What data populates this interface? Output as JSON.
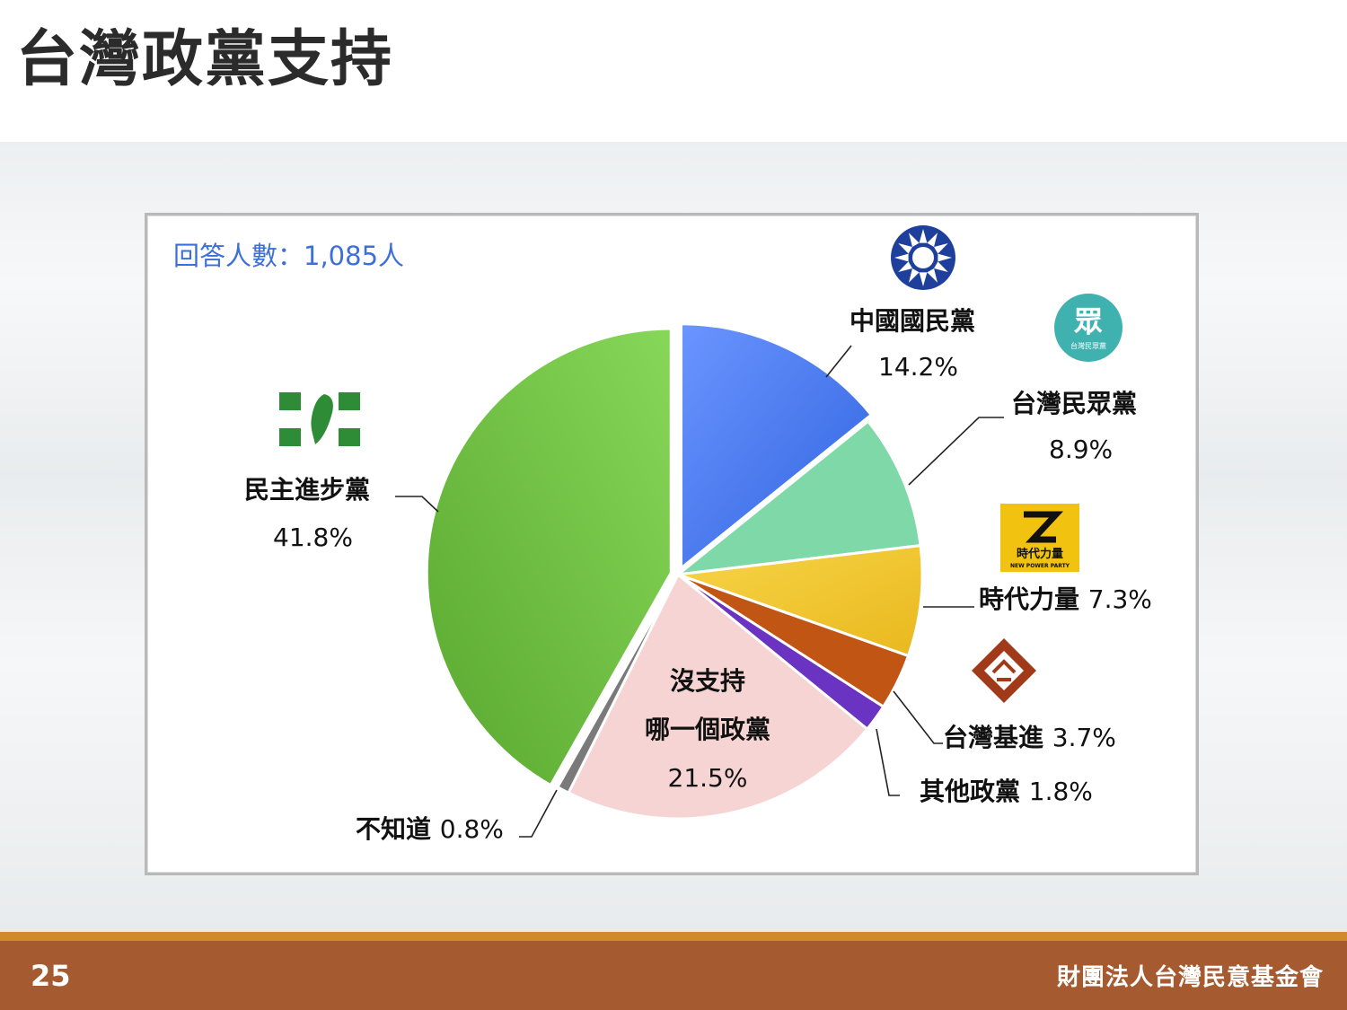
{
  "slide": {
    "title": "台灣政黨支持",
    "page_number": "25",
    "organization": "財團法人台灣民意基金會"
  },
  "respondents": "回答人數：1,085人",
  "colors": {
    "kmt": "#4f7ff0",
    "tpp": "#7fd8a8",
    "npp": "#f2c932",
    "tsp": "#c05514",
    "other": "#6a33c2",
    "none": "#f6d4d4",
    "unknown": "#7a7a7a",
    "dpp": "#6cc040",
    "footer": "#a65a30",
    "footer_line": "#d08a2a"
  },
  "icons": {
    "kmt": "kmt-emblem-icon",
    "tpp": "tpp-logo-icon",
    "npp": "npp-logo-icon",
    "tsp": "tsp-logo-icon",
    "dpp": "dpp-logo-icon"
  },
  "logo_text": {
    "tpp_glyph": "眾",
    "tpp_small": "台灣民眾黨",
    "npp_name": "時代力量",
    "npp_english": "NEW POWER PARTY"
  },
  "chart_data": {
    "type": "pie",
    "start_angle_deg": 0,
    "direction": "clockwise",
    "slices": [
      {
        "key": "kmt",
        "name": "中國國民黨",
        "value": 14.2,
        "label": "14.2%"
      },
      {
        "key": "tpp",
        "name": "台灣民眾黨",
        "value": 8.9,
        "label": "8.9%"
      },
      {
        "key": "npp",
        "name": "時代力量",
        "value": 7.3,
        "label": "7.3%"
      },
      {
        "key": "tsp",
        "name": "台灣基進",
        "value": 3.7,
        "label": "3.7%"
      },
      {
        "key": "other",
        "name": "其他政黨",
        "value": 1.8,
        "label": "1.8%"
      },
      {
        "key": "none",
        "name": "沒支持\n哪一個政黨",
        "value": 21.5,
        "label": "21.5%"
      },
      {
        "key": "unknown",
        "name": "不知道",
        "value": 0.8,
        "label": "0.8%"
      },
      {
        "key": "dpp",
        "name": "民主進步黨",
        "value": 41.8,
        "label": "41.8%"
      }
    ]
  }
}
